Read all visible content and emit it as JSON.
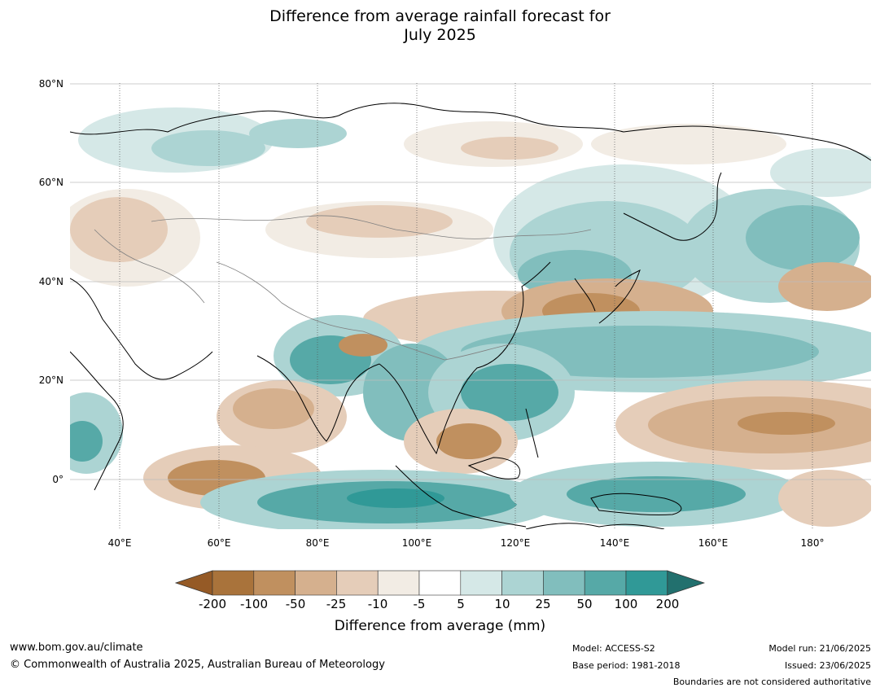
{
  "title_line1": "Difference from average rainfall forecast for",
  "title_line2": "July 2025",
  "map": {
    "lat_labels": [
      "80°N",
      "60°N",
      "40°N",
      "20°N",
      "0°"
    ],
    "lon_labels": [
      "40°E",
      "60°E",
      "80°E",
      "100°E",
      "120°E",
      "140°E",
      "160°E",
      "180°"
    ],
    "colors": {
      "land_outline": "#000000",
      "border": "#808080",
      "gridline": "#bdbdbd",
      "ocean": "#ffffff"
    }
  },
  "legend": {
    "ticks": [
      "-200",
      "-100",
      "-50",
      "-25",
      "-10",
      "-5",
      "5",
      "10",
      "25",
      "50",
      "100",
      "200"
    ],
    "colors": [
      "#955a26",
      "#a9733b",
      "#c0905f",
      "#d5b08e",
      "#e5cdb9",
      "#f2ece4",
      "#ffffff",
      "#d5e8e7",
      "#acd4d3",
      "#81bebd",
      "#56a9a7",
      "#309997",
      "#22706e"
    ],
    "title": "Difference from average (mm)"
  },
  "footer": {
    "url": "www.bom.gov.au/climate",
    "copyright": "© Commonwealth of Australia 2025, Australian Bureau of Meteorology",
    "model": "Model: ACCESS-S2",
    "base_period": "Base period: 1981-2018",
    "model_run": "Model run: 21/06/2025",
    "issued": "Issued: 23/06/2025",
    "disclaimer": "Boundaries are not considered authoritative"
  }
}
